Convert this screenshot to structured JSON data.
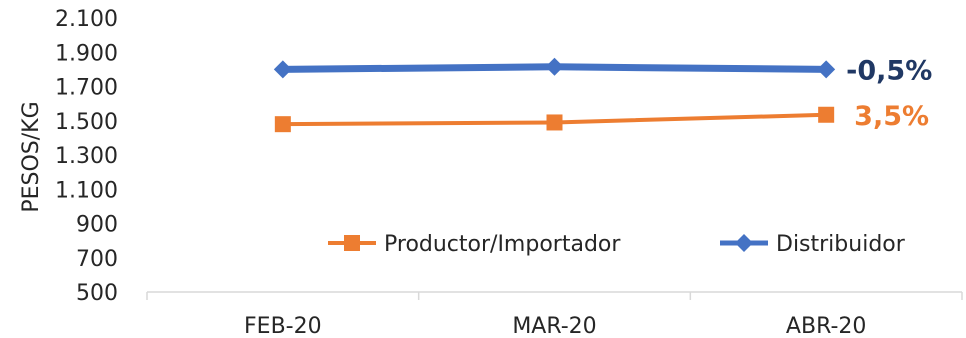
{
  "chart_data": {
    "type": "line",
    "categories": [
      "FEB-20",
      "MAR-20",
      "ABR-20"
    ],
    "ylabel": "PESOS/KG",
    "ylim": [
      500,
      2100
    ],
    "yticks": [
      "2.100",
      "1.900",
      "1.700",
      "1.500",
      "1.300",
      "1.100",
      "900",
      "700",
      "500"
    ],
    "ytick_values": [
      2100,
      1900,
      1700,
      1500,
      1300,
      1100,
      900,
      700,
      500
    ],
    "grid": false,
    "legend_position": "bottom-right",
    "series": [
      {
        "name": "Productor/Importador",
        "values": [
          1480,
          1490,
          1535
        ],
        "color": "#ED7D31",
        "marker": "square",
        "annotation": "3,5%"
      },
      {
        "name": "Distribuidor",
        "values": [
          1800,
          1815,
          1800
        ],
        "color": "#4472C4",
        "marker": "diamond",
        "annotation": "-0,5%"
      }
    ],
    "annotation_colors": {
      "Productor/Importador": "#ED7D31",
      "Distribuidor": "#203864"
    }
  }
}
